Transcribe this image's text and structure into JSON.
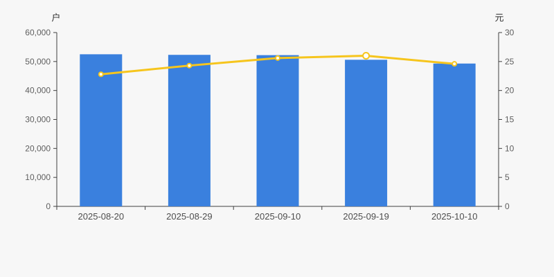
{
  "chart_data": {
    "type": "bar",
    "title": "",
    "categories": [
      "2025-08-20",
      "2025-08-29",
      "2025-09-10",
      "2025-09-19",
      "2025-10-10"
    ],
    "series": [
      {
        "name": "户",
        "type": "bar",
        "axis": "left",
        "color": "#3a80de",
        "values": [
          52500,
          52300,
          52200,
          50600,
          49300
        ]
      },
      {
        "name": "元",
        "type": "line",
        "axis": "right",
        "color": "#f6c51d",
        "marker_fill": "#ffffff",
        "values": [
          22.8,
          24.3,
          25.6,
          26.0,
          24.6
        ],
        "emphasized_point": "2025-09-19",
        "emphasized_point_index": 3
      }
    ],
    "left_axis": {
      "name": "户",
      "min": 0,
      "max": 60000,
      "step": 10000,
      "tick_labels": [
        "0",
        "10,000",
        "20,000",
        "30,000",
        "40,000",
        "50,000",
        "60,000"
      ]
    },
    "right_axis": {
      "name": "元",
      "min": 0,
      "max": 30,
      "step": 5,
      "tick_labels": [
        "0",
        "5",
        "10",
        "15",
        "20",
        "25",
        "30"
      ]
    },
    "x_axis": {
      "tick_labels": [
        "2025-08-20",
        "2025-08-29",
        "2025-09-10",
        "2025-09-19",
        "2025-10-10"
      ]
    },
    "legend": "none",
    "grid": "off",
    "background_color": "#f7f7f7",
    "axis_line_color": "#3f3f3f"
  }
}
